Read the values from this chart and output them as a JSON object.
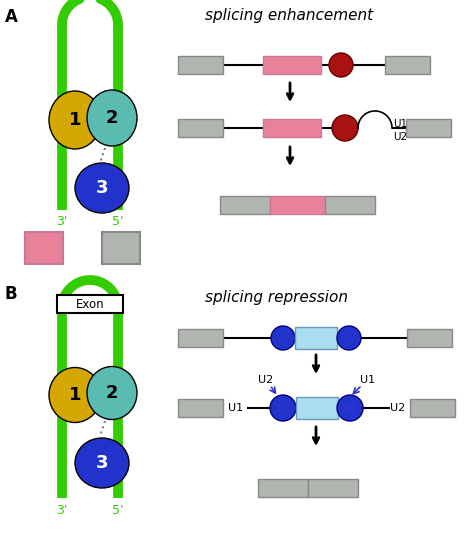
{
  "panel_a_label": "A",
  "panel_b_label": "B",
  "title_enhancement": "splicing enhancement",
  "title_repression": "splicing repression",
  "green_color": "#33cc00",
  "yellow_color": "#d4a800",
  "teal_color": "#5abcb0",
  "blue_color": "#2233cc",
  "pink_color": "#e8819a",
  "gray_color": "#b0b5b0",
  "red_color": "#aa1111",
  "light_blue_color": "#aaddee",
  "bg_color": "#ffffff",
  "exon_label": "Exon"
}
